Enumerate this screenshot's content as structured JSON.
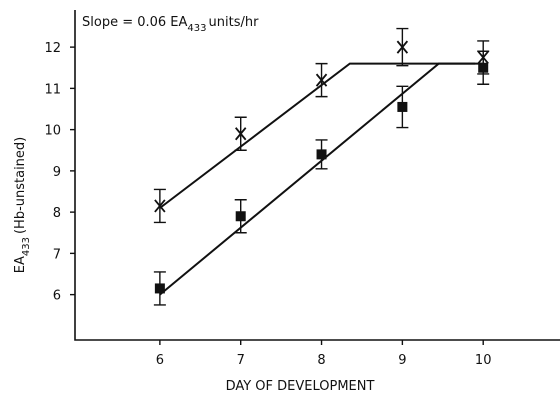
{
  "chart_data": {
    "type": "scatter",
    "annotation": {
      "text": "Slope = 0.06 EA",
      "sub": "433",
      "rest": "units/hr"
    },
    "x_label": "DAY OF DEVELOPMENT",
    "y_label": {
      "text": "EA",
      "sub": "433",
      "rest": "(Hb-unstained)"
    },
    "xlim": [
      4.95,
      10.95
    ],
    "ylim": [
      4.9,
      12.9
    ],
    "xticks": [
      6,
      7,
      8,
      9,
      10
    ],
    "yticks": [
      6,
      7,
      8,
      9,
      10,
      11,
      12
    ],
    "color": "#111111",
    "series": [
      {
        "marker": "cross",
        "x": [
          6,
          7,
          8,
          9,
          10
        ],
        "values": [
          8.15,
          9.9,
          11.2,
          12.0,
          11.75
        ],
        "errors": [
          0.4,
          0.4,
          0.4,
          0.45,
          0.4
        ]
      },
      {
        "marker": "square",
        "x": [
          6,
          7,
          8,
          9,
          10
        ],
        "values": [
          6.15,
          7.9,
          9.4,
          10.55,
          11.5
        ],
        "errors": [
          0.4,
          0.4,
          0.35,
          0.5,
          0.4
        ]
      }
    ],
    "fit_lines": [
      {
        "x": [
          6,
          8.35,
          9.9
        ],
        "values": [
          8.1,
          11.6,
          11.6
        ]
      },
      {
        "x": [
          6,
          9.45,
          10
        ],
        "values": [
          6.0,
          11.6,
          11.6
        ]
      }
    ]
  }
}
